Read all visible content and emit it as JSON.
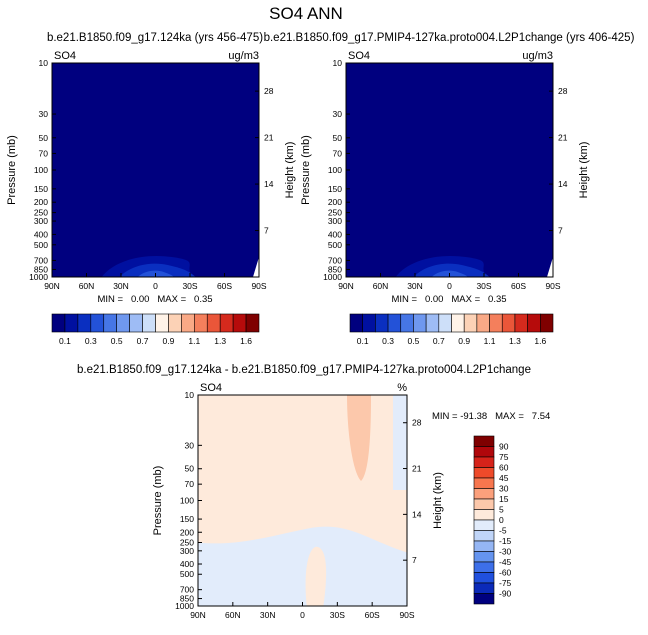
{
  "page": {
    "main_title": "SO4 ANN",
    "label_left": "b.e21.B1850.f09_g17.124ka (yrs 456-475)",
    "label_right": "b.e21.B1850.f09_g17.PMIP4-127ka.proto004.L2P1change (yrs 406-425)",
    "diff_title": "b.e21.B1850.f09_g17.124ka - b.e21.B1850.f09_g17.PMIP4-127ka.proto004.L2P1change"
  },
  "colors": {
    "abs_scale": [
      "#00007f",
      "#0010a0",
      "#0a2fc0",
      "#2352d8",
      "#4676e6",
      "#6f98ef",
      "#9ebcf5",
      "#cddff9",
      "#fff3e8",
      "#fcd2b6",
      "#f9a986",
      "#f47f5c",
      "#ea5639",
      "#d52a1d",
      "#b60b0b",
      "#7f0000"
    ],
    "diff_scale": [
      "#00007f",
      "#0b2ab9",
      "#2050de",
      "#3d6fe9",
      "#6594ef",
      "#95b6f4",
      "#c0d5f8",
      "#e2ecfb",
      "#feeadb",
      "#fcc8ab",
      "#fba07c",
      "#f7764e",
      "#ee4a2a",
      "#d6231a",
      "#b0070b",
      "#7f0000"
    ]
  },
  "chart_data": [
    {
      "type": "heatmap",
      "panel": "left",
      "corner_left": "SO4",
      "corner_right": "ug/m3",
      "ylabel": "Pressure (mb)",
      "y2label": "Height (km)",
      "x_ticks": [
        "90N",
        "60N",
        "30N",
        "0",
        "30S",
        "60S",
        "90S"
      ],
      "y_ticks": [
        "10",
        "30",
        "50",
        "70",
        "100",
        "150",
        "200",
        "250",
        "300",
        "400",
        "500",
        "700",
        "850",
        "1000"
      ],
      "y2_ticks": [
        "28",
        "21",
        "14",
        "7"
      ],
      "ylim": [
        1000,
        10
      ],
      "stats": "MIN =   0.00   MAX =   0.35",
      "colorbar_labels": [
        "0.1",
        "0.3",
        "0.5",
        "0.7",
        "0.9",
        "1.1",
        "1.3",
        "1.6"
      ],
      "min": 0.0,
      "max": 0.35
    },
    {
      "type": "heatmap",
      "panel": "right",
      "corner_left": "SO4",
      "corner_right": "ug/m3",
      "ylabel": "Pressure (mb)",
      "y2label": "Height (km)",
      "x_ticks": [
        "90N",
        "60N",
        "30N",
        "0",
        "30S",
        "60S",
        "90S"
      ],
      "y_ticks": [
        "10",
        "30",
        "50",
        "70",
        "100",
        "150",
        "200",
        "250",
        "300",
        "400",
        "500",
        "700",
        "850",
        "1000"
      ],
      "y2_ticks": [
        "28",
        "21",
        "14",
        "7"
      ],
      "ylim": [
        1000,
        10
      ],
      "stats": "MIN =   0.00   MAX =   0.35",
      "colorbar_labels": [
        "0.1",
        "0.3",
        "0.5",
        "0.7",
        "0.9",
        "1.1",
        "1.3",
        "1.6"
      ],
      "min": 0.0,
      "max": 0.35
    },
    {
      "type": "heatmap",
      "panel": "difference",
      "corner_left": "SO4",
      "corner_right": "%",
      "ylabel": "Pressure (mb)",
      "y2label": "Height (km)",
      "x_ticks": [
        "90N",
        "60N",
        "30N",
        "0",
        "30S",
        "60S",
        "90S"
      ],
      "y_ticks": [
        "10",
        "30",
        "50",
        "70",
        "100",
        "150",
        "200",
        "250",
        "300",
        "400",
        "500",
        "700",
        "850",
        "1000"
      ],
      "y2_ticks": [
        "28",
        "21",
        "14",
        "7"
      ],
      "ylim": [
        1000,
        10
      ],
      "stats": "MIN = -91.38   MAX =   7.54",
      "colorbar_labels": [
        "90",
        "75",
        "60",
        "45",
        "30",
        "15",
        "5",
        "0",
        "-5",
        "-15",
        "-30",
        "-45",
        "-60",
        "-75",
        "-90"
      ],
      "min": -91.38,
      "max": 7.54
    }
  ]
}
